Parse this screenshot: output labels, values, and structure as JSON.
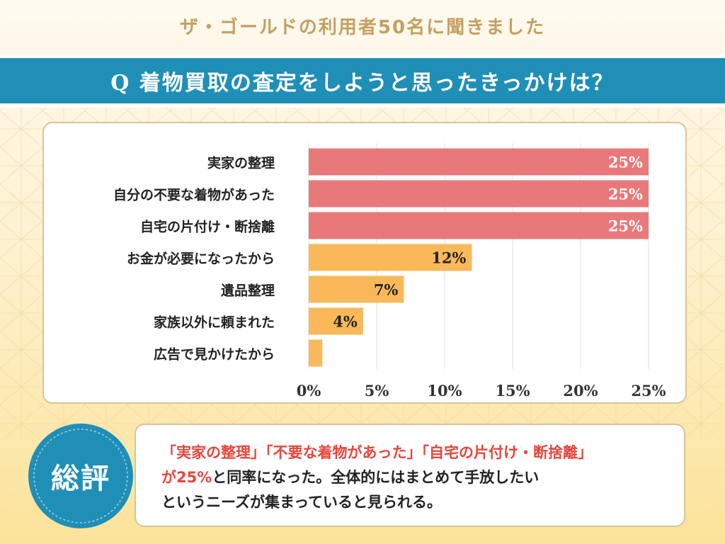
{
  "header": {
    "subtitle": "ザ・ゴールドの利用者50名に聞きました",
    "question": "Q 着物買取の査定をしようと思ったきっかけは？"
  },
  "colors": {
    "banner": "#1f8fb7",
    "bar_top": "#e9787a",
    "bar_other": "#f9b859",
    "subtitle": "#c2a063",
    "badge": "#1f8fb7",
    "highlight": "#e8453c"
  },
  "chart_data": {
    "type": "bar",
    "orientation": "horizontal",
    "categories": [
      "実家の整理",
      "自分の不要な着物があった",
      "自宅の片付け・断捨離",
      "お金が必要になったから",
      "遺品整理",
      "家族以外に頼まれた",
      "広告で見かけたから"
    ],
    "values": [
      25,
      25,
      25,
      12,
      7,
      4,
      1
    ],
    "value_labels": [
      "25%",
      "25%",
      "25%",
      "12%",
      "7%",
      "4%",
      ""
    ],
    "xlim": [
      0,
      25
    ],
    "xticks": [
      "0%",
      "5%",
      "10%",
      "15%",
      "20%",
      "25%"
    ],
    "grid": true
  },
  "summary": {
    "badge": "総評",
    "line1": "「実家の整理」「不要な着物があった」「自宅の片付け・断捨離」",
    "line2_highlight": "が25%",
    "line2_rest": "と同率になった。全体的にはまとめて手放したい",
    "line3": "というニーズが集まっていると見られる。"
  }
}
